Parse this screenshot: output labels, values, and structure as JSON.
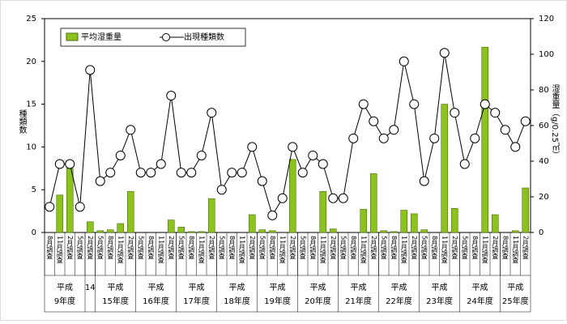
{
  "chart_data": {
    "type": "bar-line",
    "y_label": "種類数",
    "y2_label": "湿重量（g/0.25㎡）",
    "ylim": [
      0,
      25
    ],
    "yticks": [
      0,
      5,
      10,
      15,
      20,
      25
    ],
    "y2lim": [
      0,
      120
    ],
    "y2ticks": [
      0,
      20,
      40,
      60,
      80,
      100,
      120
    ],
    "groups": [
      {
        "top": "平成",
        "bottom": "9年度",
        "categories": [
          "8月調査",
          "11月調査",
          "2月調査",
          "5月調査"
        ]
      },
      {
        "bottom": "14",
        "categories": [
          "2月調査"
        ]
      },
      {
        "top": "平成",
        "bottom": "15年度",
        "categories": [
          "5月調査",
          "8月調査",
          "11月調査",
          "2月調査"
        ]
      },
      {
        "top": "平成",
        "bottom": "16年度",
        "categories": [
          "5月調査",
          "8月調査",
          "11月調査",
          "2月調査"
        ]
      },
      {
        "top": "平成",
        "bottom": "17年度",
        "categories": [
          "5月調査",
          "8月調査",
          "11月調査",
          "2月調査"
        ]
      },
      {
        "top": "平成",
        "bottom": "18年度",
        "categories": [
          "5月調査",
          "8月調査",
          "11月調査",
          "2月調査"
        ]
      },
      {
        "top": "平成",
        "bottom": "19年度",
        "categories": [
          "5月調査",
          "8月調査",
          "11月調査",
          "2月調査"
        ]
      },
      {
        "top": "平成",
        "bottom": "20年度",
        "categories": [
          "5月調査",
          "8月調査",
          "11月調査",
          "2月調査"
        ]
      },
      {
        "top": "平成",
        "bottom": "21年度",
        "categories": [
          "5月調査",
          "8月調査",
          "11月調査",
          "2月調査"
        ]
      },
      {
        "top": "平成",
        "bottom": "22年度",
        "categories": [
          "5月調査",
          "8月調査",
          "11月調査",
          "2月調査"
        ]
      },
      {
        "top": "平成",
        "bottom": "23年度",
        "categories": [
          "5月調査",
          "8月調査",
          "11月調査",
          "2月調査"
        ]
      },
      {
        "top": "平成",
        "bottom": "24年度",
        "categories": [
          "5月調査",
          "8月調査",
          "11月調査",
          "2月調査"
        ]
      },
      {
        "top": "平成",
        "bottom": "25年度",
        "categories": [
          "8月調査",
          "11月調査",
          "2月調査"
        ]
      }
    ],
    "series": [
      {
        "name": "平均湿重量",
        "color": "#8cc21e",
        "axis": "y2",
        "values": [
          0,
          21,
          36,
          0,
          6,
          1,
          1.5,
          5,
          23,
          0,
          0,
          0,
          7,
          3,
          0.5,
          0.5,
          19,
          0,
          0,
          0,
          10,
          1.5,
          1,
          0,
          41,
          0,
          0,
          23,
          2,
          0,
          0,
          13,
          33,
          1,
          0.5,
          12.5,
          10.5,
          1.5,
          0,
          72,
          13.5,
          0,
          0,
          104,
          10,
          0,
          1,
          25
        ]
      },
      {
        "name": "出現種類数",
        "color": "#000000",
        "values": [
          3,
          8,
          8,
          3,
          19,
          6,
          7,
          9,
          12,
          7,
          7,
          8,
          16,
          7,
          7,
          9,
          14,
          5,
          7,
          7,
          10,
          6,
          2,
          4,
          10,
          7,
          9,
          8,
          4,
          4,
          11,
          15,
          13,
          11,
          12,
          20,
          15,
          6,
          11,
          21,
          14,
          8,
          11,
          15,
          14,
          12,
          10,
          13
        ]
      }
    ]
  }
}
